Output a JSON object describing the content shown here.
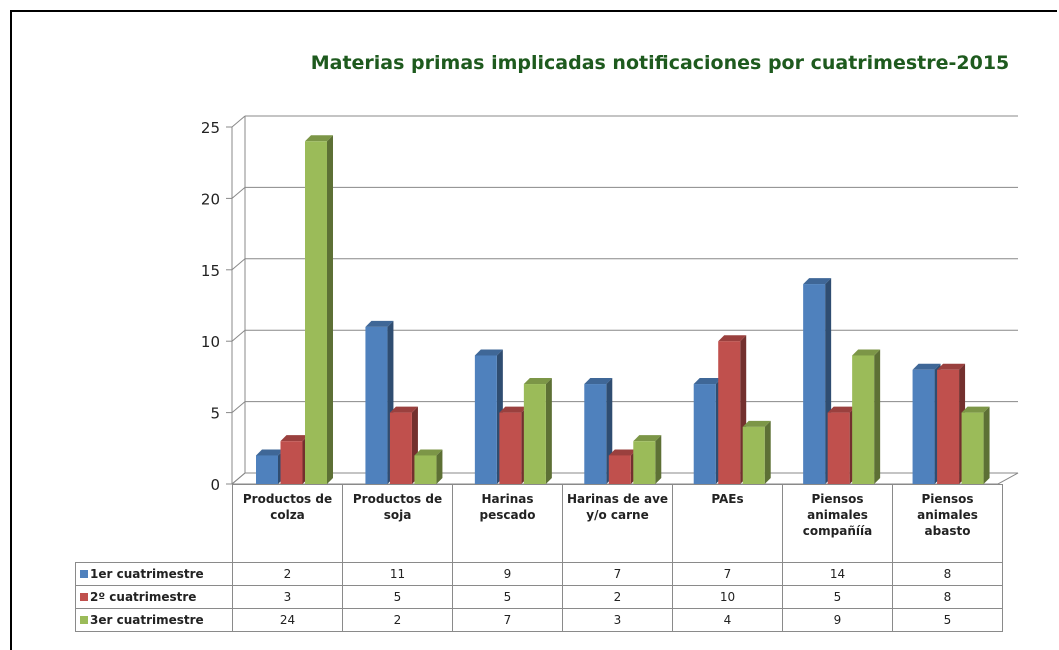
{
  "chart_data": {
    "type": "bar",
    "title": "Materias primas implicadas notificaciones por cuatrimestre-2015",
    "categories": [
      "Productos de colza",
      "Productos de soja",
      "Harinas pescado",
      "Harinas de ave y/o carne",
      "PAEs",
      "Piensos animales compañíía",
      "Piensos animales abasto"
    ],
    "series": [
      {
        "name": "1er cuatrimestre",
        "color": "#4f81bd",
        "values": [
          2,
          11,
          9,
          7,
          7,
          14,
          8
        ]
      },
      {
        "name": "2º cuatrimestre",
        "color": "#c0504d",
        "values": [
          3,
          5,
          5,
          2,
          10,
          5,
          8
        ]
      },
      {
        "name": "3er cuatrimestre",
        "color": "#9bbb59",
        "values": [
          24,
          2,
          7,
          3,
          4,
          9,
          5
        ]
      }
    ],
    "ylim": [
      0,
      25
    ],
    "yticks": [
      0,
      5,
      10,
      15,
      20,
      25
    ],
    "grid": true
  }
}
